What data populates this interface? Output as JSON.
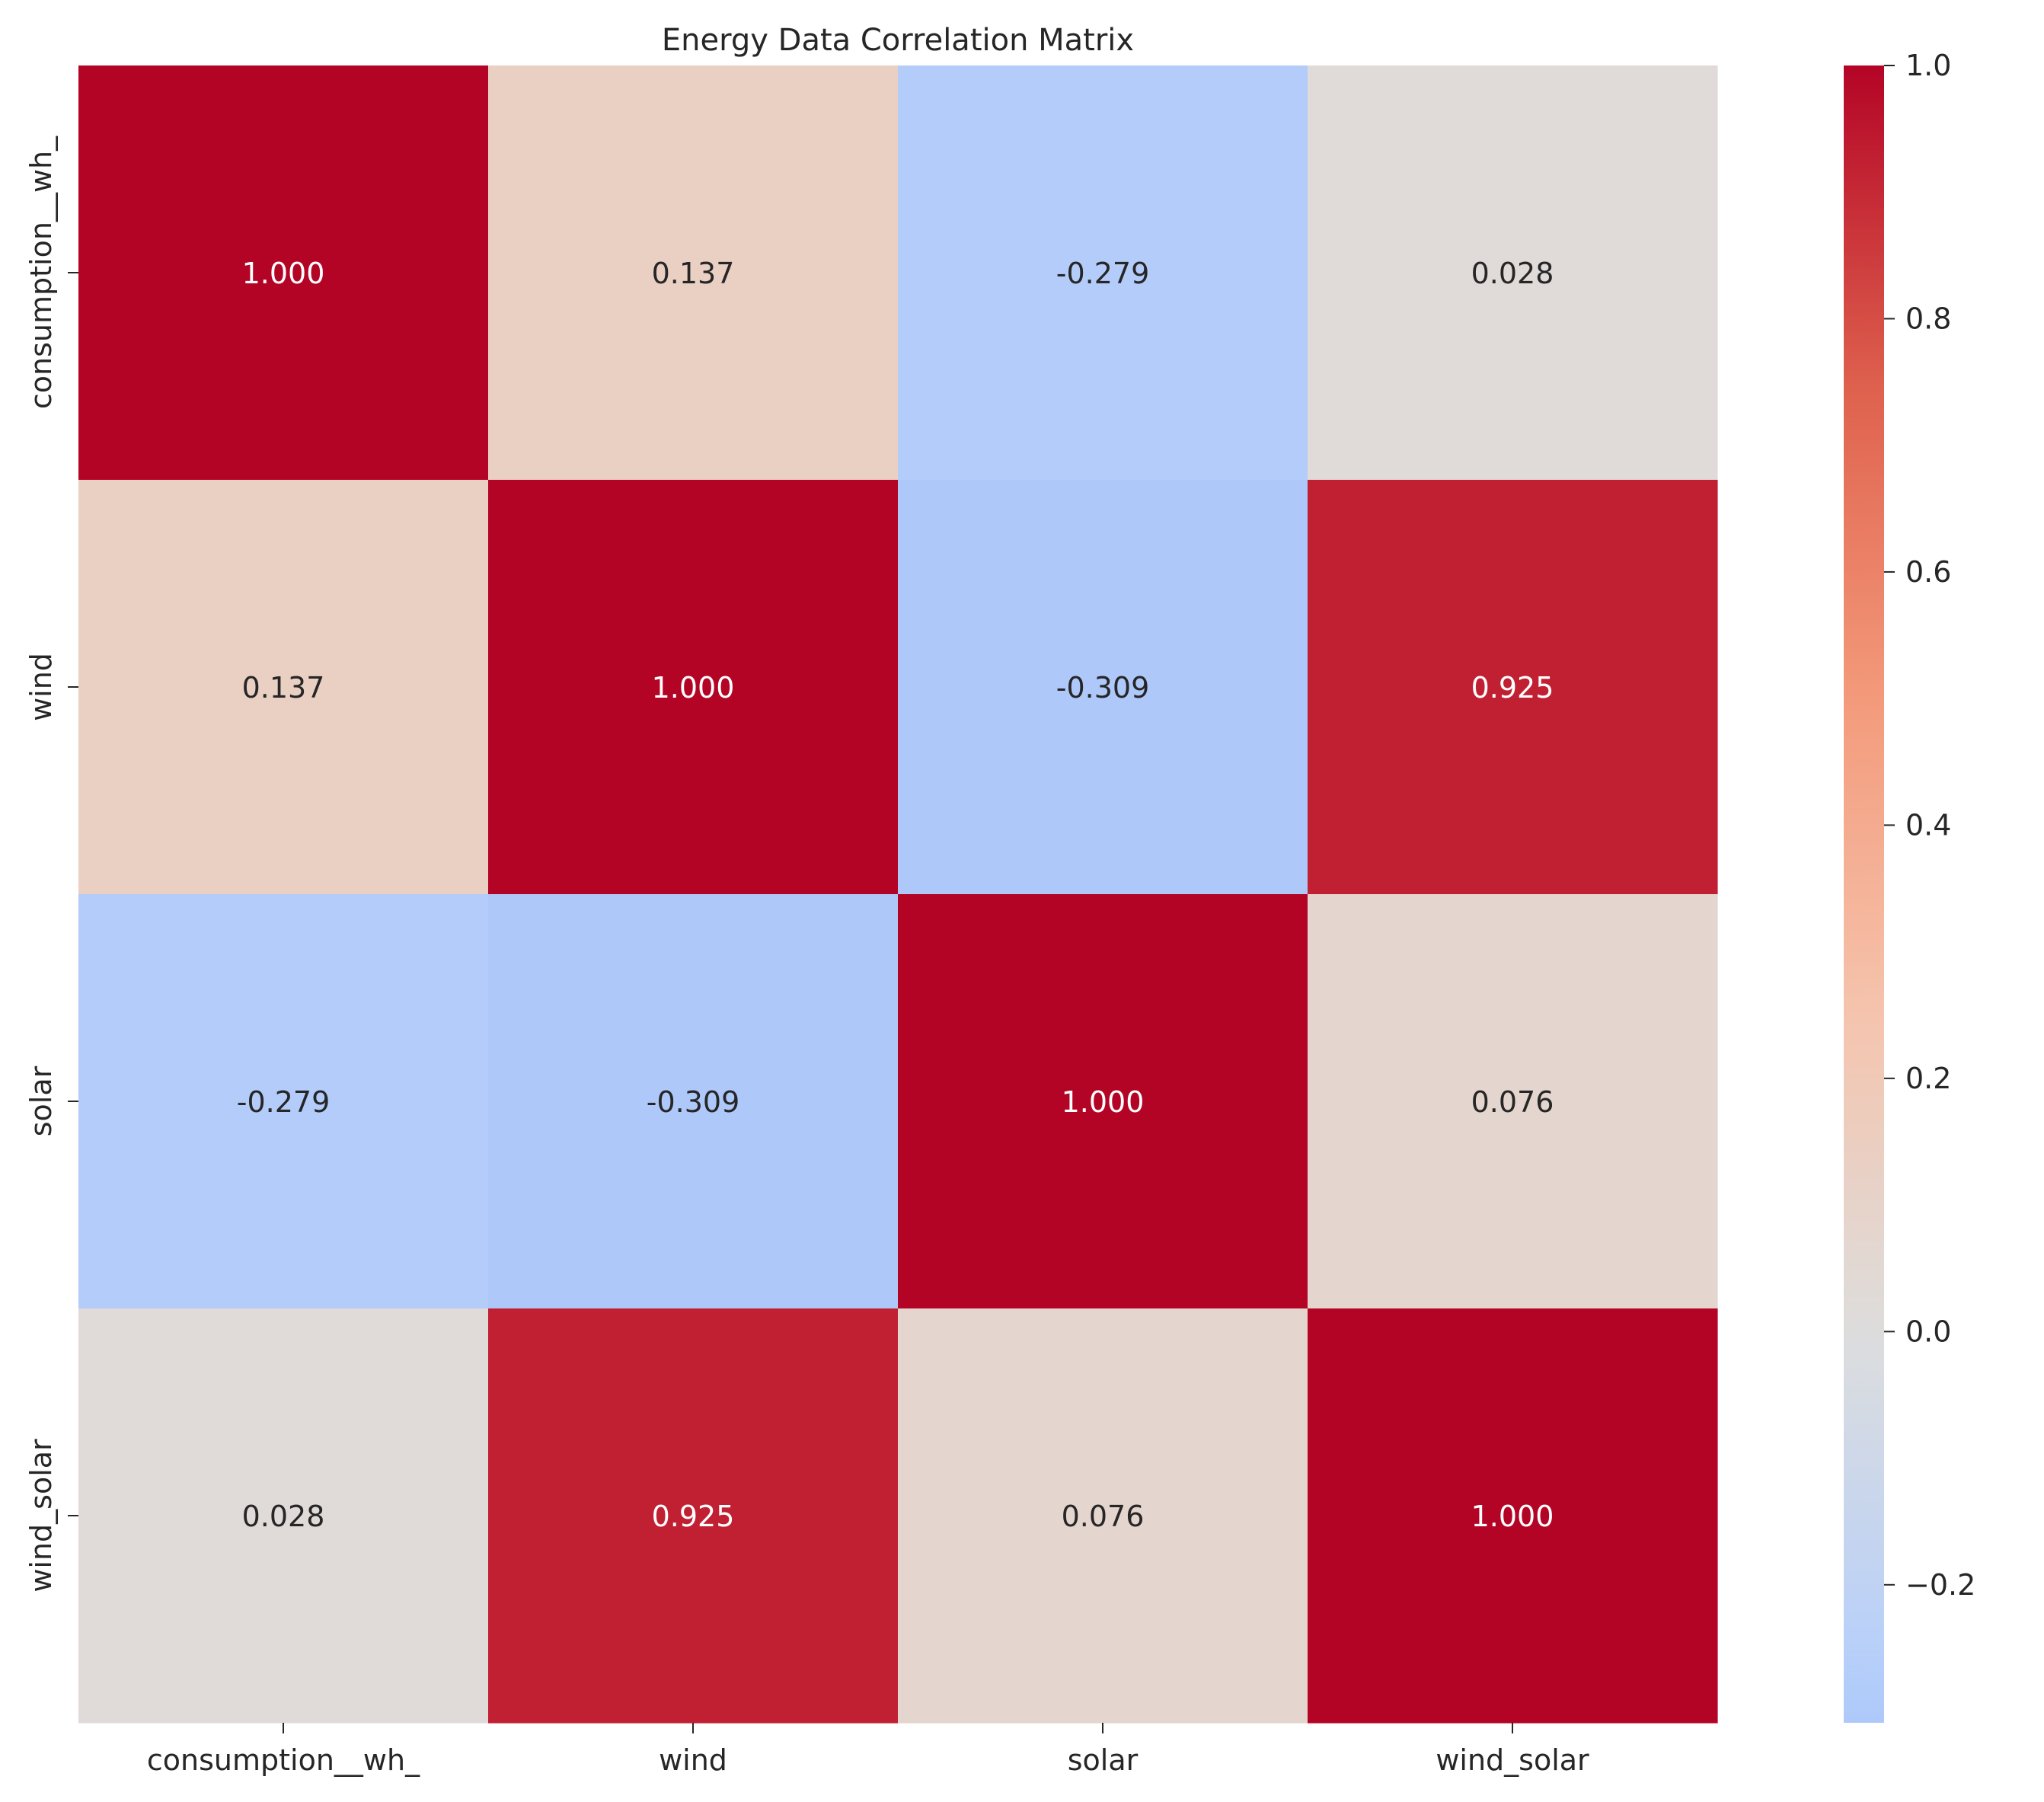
{
  "chart_data": {
    "type": "heatmap",
    "title": "Energy Data Correlation Matrix",
    "xlabel": "",
    "ylabel": "",
    "x_categories": [
      "consumption__wh_",
      "wind",
      "solar",
      "wind_solar"
    ],
    "y_categories": [
      "consumption__wh_",
      "wind",
      "solar",
      "wind_solar"
    ],
    "values": [
      [
        1.0,
        0.137,
        -0.279,
        0.028
      ],
      [
        0.137,
        1.0,
        -0.309,
        0.925
      ],
      [
        -0.279,
        -0.309,
        1.0,
        0.076
      ],
      [
        0.028,
        0.925,
        0.076,
        1.0
      ]
    ],
    "annotations": [
      [
        "1.000",
        "0.137",
        "-0.279",
        "0.028"
      ],
      [
        "0.137",
        "1.000",
        "-0.309",
        "0.925"
      ],
      [
        "-0.279",
        "-0.309",
        "1.000",
        "0.076"
      ],
      [
        "0.028",
        "0.925",
        "0.076",
        "1.000"
      ]
    ],
    "colormap": "coolwarm",
    "color_center": 0,
    "color_range": [
      -0.309,
      1.0
    ],
    "colorbar_ticks": [
      -0.2,
      0.0,
      0.2,
      0.4,
      0.6,
      0.8,
      1.0
    ],
    "colorbar_tick_labels": [
      "−0.2",
      "0.0",
      "0.2",
      "0.4",
      "0.6",
      "0.8",
      "1.0"
    ],
    "grid": false,
    "colorbar_position": "right"
  }
}
